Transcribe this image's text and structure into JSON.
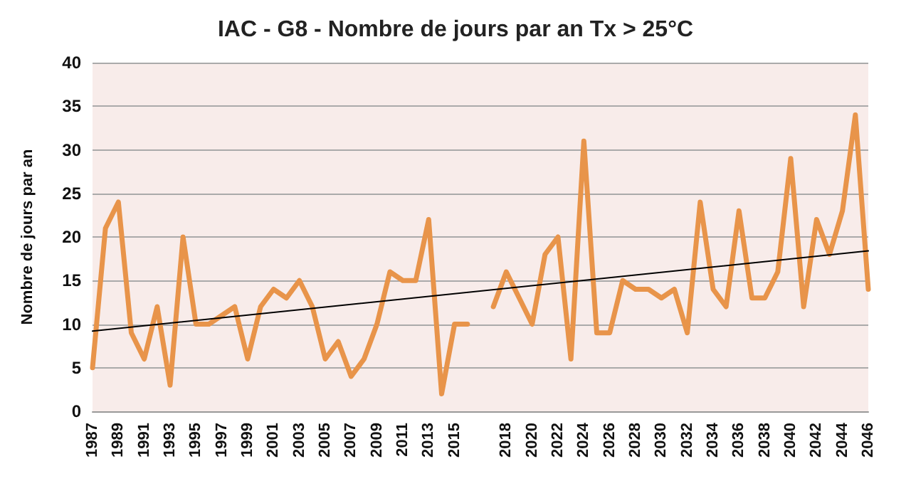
{
  "chart_data": {
    "type": "line",
    "title": "IAC - G8 - Nombre de jours par an Tx > 25°C",
    "ylabel": "Nombre de jours par an",
    "categories": [
      "1987",
      null,
      "1989",
      null,
      "1991",
      null,
      "1993",
      null,
      "1995",
      null,
      "1997",
      null,
      "1999",
      null,
      "2001",
      null,
      "2003",
      null,
      "2005",
      null,
      "2007",
      null,
      "2009",
      null,
      "2011",
      null,
      "2013",
      null,
      "2015",
      null,
      null,
      null,
      "2018",
      null,
      "2020",
      null,
      "2022",
      null,
      "2024",
      null,
      "2026",
      null,
      "2028",
      null,
      "2030",
      null,
      "2032",
      null,
      "2034",
      null,
      "2036",
      null,
      "2038",
      null,
      "2040",
      null,
      "2042",
      null,
      "2044",
      null,
      "2046"
    ],
    "series": [
      {
        "color": "#e8944a",
        "values": [
          5,
          21,
          24,
          9,
          6,
          12,
          3,
          20,
          10,
          10,
          11,
          12,
          6,
          12,
          14,
          13,
          15,
          12,
          6,
          8,
          4,
          6,
          10,
          16,
          15,
          15,
          22,
          2,
          10,
          10,
          null,
          12,
          16,
          13,
          10,
          18,
          20,
          6,
          31,
          9,
          9,
          15,
          14,
          14,
          13,
          14,
          9,
          24,
          14,
          12,
          23,
          13,
          13,
          16,
          29,
          12,
          22,
          18,
          23,
          34,
          14
        ]
      },
      {
        "type": "line",
        "color": "#000000",
        "values": [
          9.2,
          null,
          null,
          null,
          null,
          null,
          null,
          null,
          null,
          null,
          null,
          null,
          null,
          null,
          null,
          null,
          null,
          null,
          null,
          null,
          null,
          null,
          null,
          null,
          null,
          null,
          null,
          null,
          null,
          null,
          null,
          null,
          null,
          null,
          null,
          null,
          null,
          null,
          null,
          null,
          null,
          null,
          null,
          null,
          null,
          null,
          null,
          null,
          null,
          null,
          null,
          null,
          null,
          null,
          null,
          null,
          null,
          null,
          null,
          null,
          18.4
        ]
      }
    ],
    "ylim": [
      0,
      40
    ],
    "yticks": [
      0,
      5,
      10,
      15,
      20,
      25,
      30,
      35,
      40
    ],
    "grid": "y",
    "marker": "none",
    "line_style": "solid"
  }
}
